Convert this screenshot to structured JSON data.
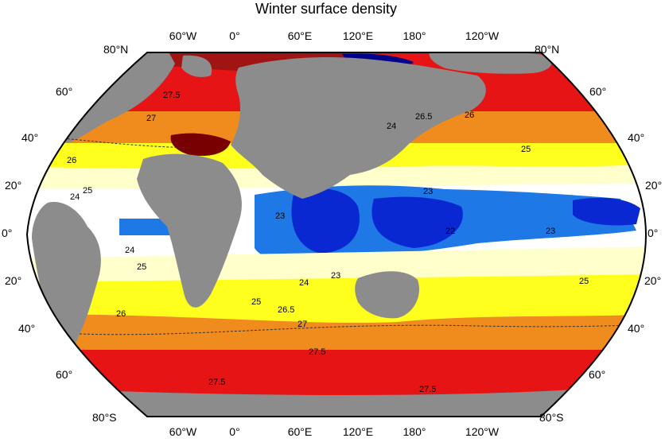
{
  "title": "Winter surface density",
  "lon_labels_top": [
    "60°W",
    "0°",
    "60°E",
    "120°E",
    "180°",
    "120°W"
  ],
  "lon_labels_bottom": [
    "60°W",
    "0°",
    "60°E",
    "120°E",
    "180°",
    "120°W"
  ],
  "lat_labels_left": [
    "80°N",
    "60°",
    "40°",
    "20°",
    "0°",
    "20°",
    "40°",
    "60°",
    "80°S"
  ],
  "lat_labels_right": [
    "80°N",
    "60°",
    "40°",
    "20°",
    "0°",
    "20°",
    "40°",
    "60°",
    "80°S"
  ],
  "contour_labels": [
    "27.5",
    "27",
    "26",
    "25",
    "24",
    "25",
    "26.5",
    "26",
    "25",
    "23",
    "24",
    "22",
    "23",
    "24",
    "25",
    "23",
    "25",
    "24",
    "23",
    "26",
    "26.5",
    "27",
    "27.5",
    "27.5"
  ],
  "colors": {
    "land": "#8c8c8c",
    "d_lt_22": "#00008a",
    "d_22": "#0a28d2",
    "d_23": "#1e78e6",
    "d_24": "#ffffff",
    "d_25": "#ffffcc",
    "d_26": "#ffff1e",
    "d_265": "#f08c1e",
    "d_27": "#e61414",
    "d_275": "#a01414",
    "d_gt_275": "#780000"
  }
}
